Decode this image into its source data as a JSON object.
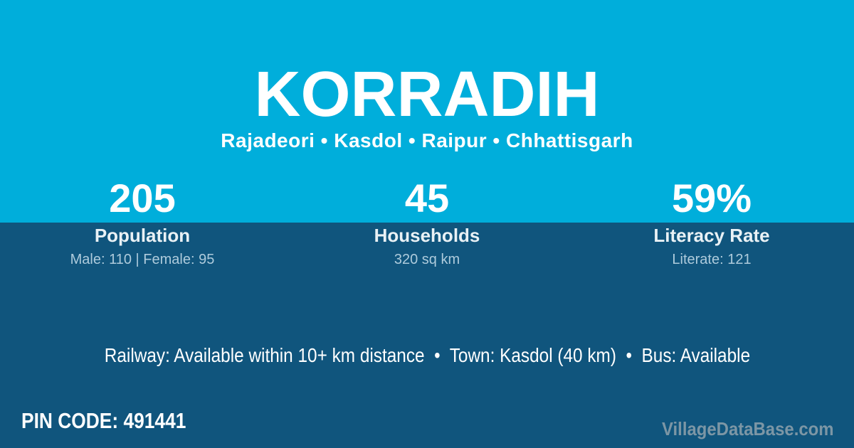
{
  "colors": {
    "top_background": "#00aedb",
    "bottom_background": "#10557d",
    "text_primary": "#ffffff",
    "text_soft": "#e9f1f5",
    "text_muted": "#aecbdc",
    "watermark_color": "#8fa2ad"
  },
  "header": {
    "title": "KORRADIH",
    "breadcrumb": "Rajadeori • Kasdol • Raipur • Chhattisgarh"
  },
  "stats": [
    {
      "value": "205",
      "label": "Population",
      "detail": "Male: 110 | Female: 95"
    },
    {
      "value": "45",
      "label": "Households",
      "detail": "320 sq km"
    },
    {
      "value": "59%",
      "label": "Literacy Rate",
      "detail": "Literate: 121"
    }
  ],
  "transport": {
    "line": "Railway: Available within 10+ km distance  •  Town: Kasdol (40 km)  •  Bus: Available"
  },
  "footer": {
    "pin_code": "PIN CODE: 491441",
    "watermark": "VillageDataBase.com"
  }
}
